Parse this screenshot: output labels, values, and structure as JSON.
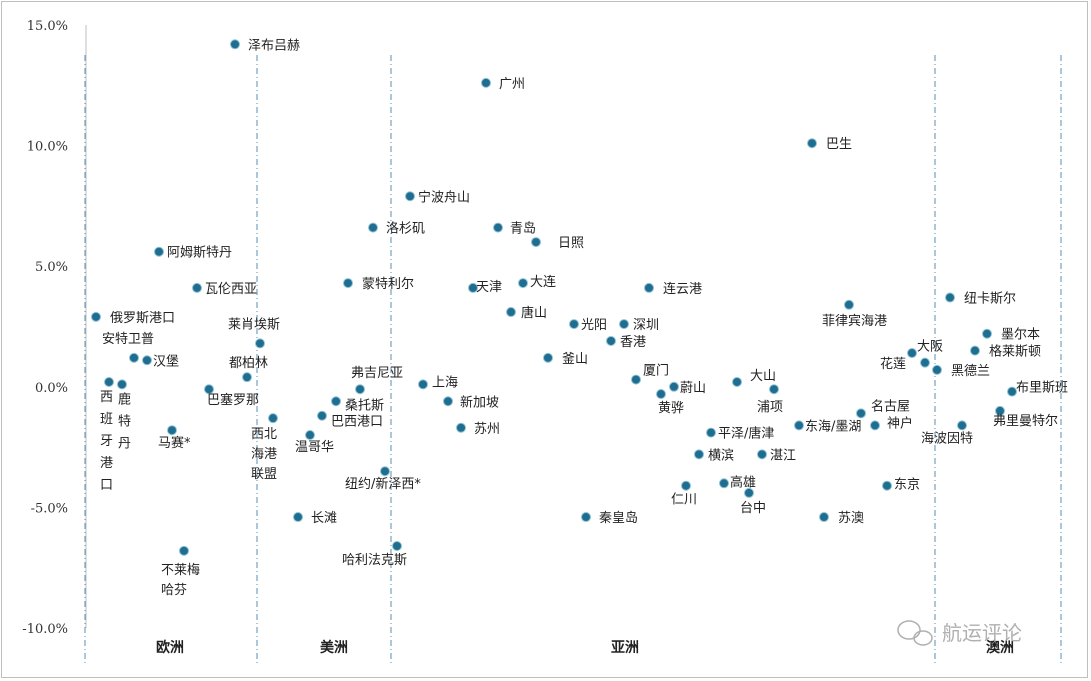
{
  "chart_data": {
    "type": "scatter",
    "title": "",
    "xlabel": "",
    "ylabel": "",
    "ylim": [
      -10,
      15
    ],
    "y_ticks": [
      {
        "value": 15,
        "label": "15.0%"
      },
      {
        "value": 10,
        "label": "10.0%"
      },
      {
        "value": 5,
        "label": "5.0%"
      },
      {
        "value": 0,
        "label": "0.0%"
      },
      {
        "value": -5,
        "label": "-5.0%"
      },
      {
        "value": -10,
        "label": "-10.0%"
      }
    ],
    "grid": false,
    "point_color": "#1f6e8f",
    "regions": [
      {
        "label": "欧洲"
      },
      {
        "label": "美洲"
      },
      {
        "label": "亚洲"
      },
      {
        "label": "澳洲"
      }
    ],
    "points": [
      {
        "label": "泽布吕赫",
        "region": "欧洲",
        "y": 14.2
      },
      {
        "label": "阿姆斯特丹",
        "region": "欧洲",
        "y": 5.6
      },
      {
        "label": "瓦伦西亚",
        "region": "欧洲",
        "y": 4.1
      },
      {
        "label": "俄罗斯港口",
        "region": "欧洲",
        "y": 2.9
      },
      {
        "label": "安特卫普",
        "region": "欧洲",
        "y": 1.2
      },
      {
        "label": "汉堡",
        "region": "欧洲",
        "y": 1.1
      },
      {
        "label": "莱肖埃斯",
        "region": "欧洲",
        "y": 1.8
      },
      {
        "label": "都柏林",
        "region": "欧洲",
        "y": 0.4
      },
      {
        "label": "西班牙港口",
        "region": "欧洲",
        "y": 0.2
      },
      {
        "label": "鹿特丹",
        "region": "欧洲",
        "y": 0.1
      },
      {
        "label": "巴塞罗那",
        "region": "欧洲",
        "y": -0.1
      },
      {
        "label": "马赛*",
        "region": "欧洲",
        "y": -1.8
      },
      {
        "label": "不莱梅哈芬",
        "region": "欧洲",
        "y": -6.8
      },
      {
        "label": "宁波舟山",
        "region": "美洲",
        "y": 7.9
      },
      {
        "label": "洛杉矶",
        "region": "美洲",
        "y": 6.6
      },
      {
        "label": "蒙特利尔",
        "region": "美洲",
        "y": 4.3
      },
      {
        "label": "弗吉尼亚",
        "region": "美洲",
        "y": -0.1
      },
      {
        "label": "桑托斯",
        "region": "美洲",
        "y": -0.6
      },
      {
        "label": "巴西港口",
        "region": "美洲",
        "y": -1.2
      },
      {
        "label": "西北海港联盟",
        "region": "美洲",
        "y": -1.3
      },
      {
        "label": "温哥华",
        "region": "美洲",
        "y": -2.0
      },
      {
        "label": "纽约/新泽西*",
        "region": "美洲",
        "y": -3.5
      },
      {
        "label": "长滩",
        "region": "美洲",
        "y": -5.4
      },
      {
        "label": "哈利法克斯",
        "region": "美洲",
        "y": -6.6
      },
      {
        "label": "广州",
        "region": "亚洲",
        "y": 12.6
      },
      {
        "label": "巴生",
        "region": "亚洲",
        "y": 10.1
      },
      {
        "label": "青岛",
        "region": "亚洲",
        "y": 6.6
      },
      {
        "label": "日照",
        "region": "亚洲",
        "y": 6.0
      },
      {
        "label": "天津",
        "region": "亚洲",
        "y": 4.1
      },
      {
        "label": "大连",
        "region": "亚洲",
        "y": 4.3
      },
      {
        "label": "连云港",
        "region": "亚洲",
        "y": 4.1
      },
      {
        "label": "唐山",
        "region": "亚洲",
        "y": 3.1
      },
      {
        "label": "菲律宾海港",
        "region": "亚洲",
        "y": 3.4
      },
      {
        "label": "光阳",
        "region": "亚洲",
        "y": 2.6
      },
      {
        "label": "深圳",
        "region": "亚洲",
        "y": 2.6
      },
      {
        "label": "香港",
        "region": "亚洲",
        "y": 1.9
      },
      {
        "label": "釜山",
        "region": "亚洲",
        "y": 1.2
      },
      {
        "label": "上海",
        "region": "亚洲",
        "y": 0.1
      },
      {
        "label": "厦门",
        "region": "亚洲",
        "y": 0.3
      },
      {
        "label": "黄骅",
        "region": "亚洲",
        "y": -0.3
      },
      {
        "label": "蔚山",
        "region": "亚洲",
        "y": 0.0
      },
      {
        "label": "大山",
        "region": "亚洲",
        "y": 0.2
      },
      {
        "label": "浦项",
        "region": "亚洲",
        "y": -0.1
      },
      {
        "label": "花莲",
        "region": "亚洲",
        "y": 1.4
      },
      {
        "label": "新加坡",
        "region": "亚洲",
        "y": -0.6
      },
      {
        "label": "名古屋",
        "region": "亚洲",
        "y": -1.1
      },
      {
        "label": "苏州",
        "region": "亚洲",
        "y": -1.7
      },
      {
        "label": "东海/墨湖",
        "region": "亚洲",
        "y": -1.6
      },
      {
        "label": "神户",
        "region": "亚洲",
        "y": -1.6
      },
      {
        "label": "平泽/唐津",
        "region": "亚洲",
        "y": -1.9
      },
      {
        "label": "横滨",
        "region": "亚洲",
        "y": -2.8
      },
      {
        "label": "湛江",
        "region": "亚洲",
        "y": -2.8
      },
      {
        "label": "仁川",
        "region": "亚洲",
        "y": -4.1
      },
      {
        "label": "高雄",
        "region": "亚洲",
        "y": -4.0
      },
      {
        "label": "东京",
        "region": "亚洲",
        "y": -4.1
      },
      {
        "label": "台中",
        "region": "亚洲",
        "y": -4.4
      },
      {
        "label": "秦皇岛",
        "region": "亚洲",
        "y": -5.4
      },
      {
        "label": "苏澳",
        "region": "亚洲",
        "y": -5.4
      },
      {
        "label": "大阪",
        "region": "澳洲",
        "y": 1.0
      },
      {
        "label": "黑德兰",
        "region": "澳洲",
        "y": 0.7
      },
      {
        "label": "纽卡斯尔",
        "region": "澳洲",
        "y": 3.7
      },
      {
        "label": "墨尔本",
        "region": "澳洲",
        "y": 2.2
      },
      {
        "label": "格莱斯顿",
        "region": "澳洲",
        "y": 1.5
      },
      {
        "label": "布里斯班",
        "region": "澳洲",
        "y": -0.2
      },
      {
        "label": "弗里曼特尔",
        "region": "澳洲",
        "y": -1.0
      },
      {
        "label": "海波因特",
        "region": "澳洲",
        "y": -1.6
      }
    ]
  },
  "watermark": "航运评论"
}
